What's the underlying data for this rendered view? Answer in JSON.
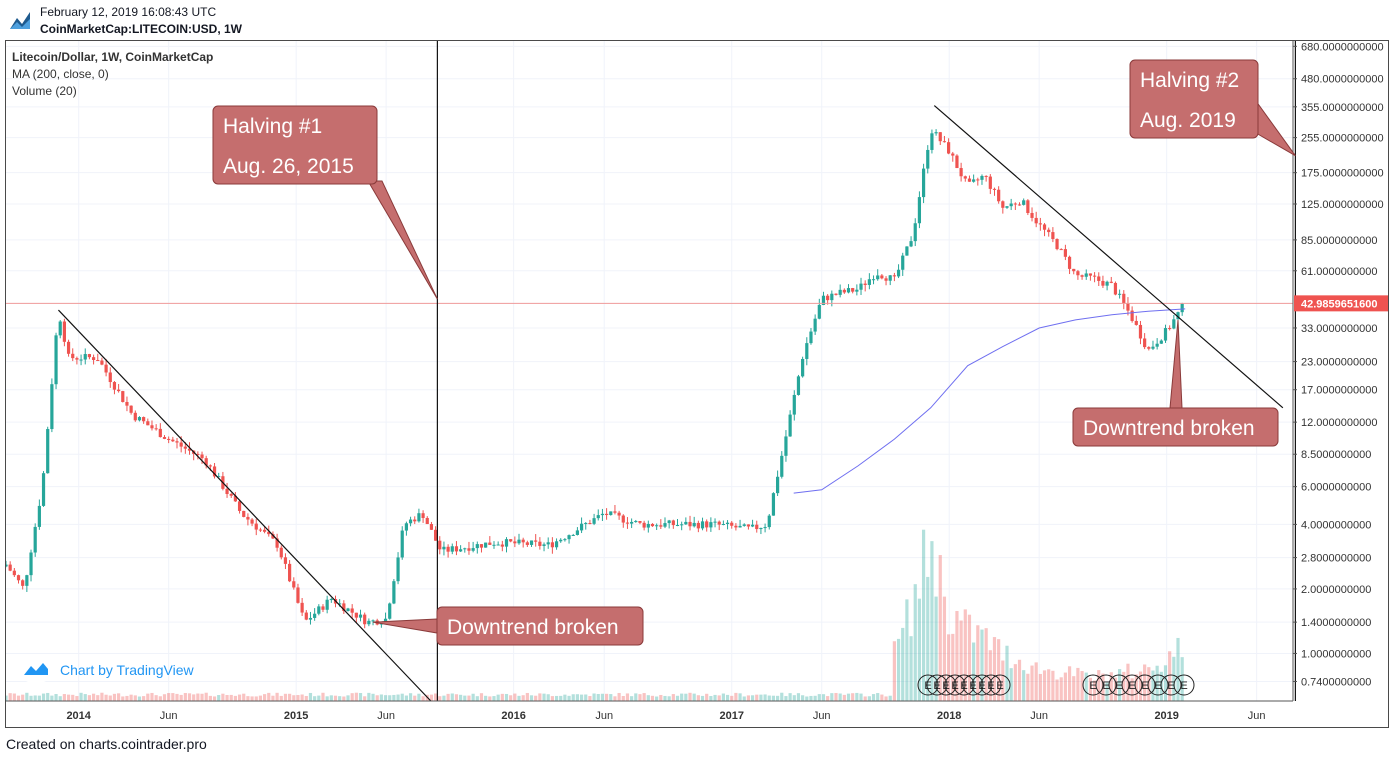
{
  "header": {
    "date": "February 12, 2019 16:08:43 UTC",
    "symbol": "CoinMarketCap:LITECOIN:USD, 1W"
  },
  "legend": {
    "title": "Litecoin/Dollar, 1W, CoinMarketCap",
    "ma": "MA (200, close, 0)",
    "volume": "Volume (20)"
  },
  "badge": {
    "label": "Chart by TradingView",
    "icon": "tradingview-logo-icon"
  },
  "footer": {
    "text": "Created on charts.cointrader.pro"
  },
  "colors": {
    "up": "#26a69a",
    "down": "#ef5350",
    "ma": "#6f6ff0",
    "callout": "#c56e6e",
    "price_line": "#ef9a9a"
  },
  "chart_data": {
    "type": "candlestick",
    "title": "Litecoin/Dollar, 1W, CoinMarketCap",
    "scale": "log",
    "ylim": [
      0.6,
      720
    ],
    "y_ticks": [
      "680.0000000000",
      "480.0000000000",
      "355.0000000000",
      "255.0000000000",
      "175.0000000000",
      "125.0000000000",
      "85.0000000000",
      "61.0000000000",
      "33.0000000000",
      "23.0000000000",
      "17.0000000000",
      "12.0000000000",
      "8.5000000000",
      "6.0000000000",
      "4.0000000000",
      "2.8000000000",
      "2.0000000000",
      "1.4000000000",
      "1.0000000000",
      "0.7400000000"
    ],
    "last_price": "42.9859651600",
    "x_range": [
      "2013-09",
      "2019-08"
    ],
    "x_ticks": [
      "2014",
      "Jun",
      "2015",
      "Jun",
      "2016",
      "Jun",
      "2017",
      "Jun",
      "2018",
      "Jun",
      "2019",
      "Jun"
    ],
    "x_tick_dates": [
      "2014-01",
      "2014-06",
      "2015-01",
      "2015-06",
      "2016-01",
      "2016-06",
      "2017-01",
      "2017-06",
      "2018-01",
      "2018-06",
      "2019-01",
      "2019-06"
    ],
    "price_path": [
      [
        "2013-09",
        2.6
      ],
      [
        "2013-10",
        2.0
      ],
      [
        "2013-11",
        6.0
      ],
      [
        "2013-11-28",
        40.0
      ],
      [
        "2013-12-15",
        24.0
      ],
      [
        "2014-02",
        24.0
      ],
      [
        "2014-04",
        13.0
      ],
      [
        "2014-06",
        10.0
      ],
      [
        "2014-08",
        8.0
      ],
      [
        "2014-10",
        4.5
      ],
      [
        "2014-12",
        3.2
      ],
      [
        "2015-01-15",
        1.4
      ],
      [
        "2015-03",
        1.8
      ],
      [
        "2015-05",
        1.4
      ],
      [
        "2015-06",
        1.45
      ],
      [
        "2015-07",
        4.0
      ],
      [
        "2015-08",
        4.5
      ],
      [
        "2015-09",
        3.0
      ],
      [
        "2015-12",
        3.3
      ],
      [
        "2016-03",
        3.2
      ],
      [
        "2016-06",
        4.5
      ],
      [
        "2016-08",
        4.0
      ],
      [
        "2016-12",
        4.0
      ],
      [
        "2017-02",
        3.8
      ],
      [
        "2017-03",
        4.0
      ],
      [
        "2017-04",
        10.0
      ],
      [
        "2017-05",
        25.0
      ],
      [
        "2017-06",
        45.0
      ],
      [
        "2017-07",
        48.0
      ],
      [
        "2017-08",
        50.0
      ],
      [
        "2017-09",
        60.0
      ],
      [
        "2017-10",
        55.0
      ],
      [
        "2017-11",
        90.0
      ],
      [
        "2017-12",
        280.0
      ],
      [
        "2018-01",
        220.0
      ],
      [
        "2018-02",
        150.0
      ],
      [
        "2018-03",
        170.0
      ],
      [
        "2018-04",
        120.0
      ],
      [
        "2018-05",
        130.0
      ],
      [
        "2018-06",
        100.0
      ],
      [
        "2018-07",
        80.0
      ],
      [
        "2018-08",
        58.0
      ],
      [
        "2018-09",
        56.0
      ],
      [
        "2018-10",
        52.0
      ],
      [
        "2018-11",
        38.0
      ],
      [
        "2018-12",
        26.0
      ],
      [
        "2019-01",
        32.0
      ],
      [
        "2019-02",
        43.0
      ]
    ],
    "ma_200": [
      [
        "2017-04-15",
        5.6
      ],
      [
        "2017-06",
        5.8
      ],
      [
        "2017-08",
        7.5
      ],
      [
        "2017-10",
        10.0
      ],
      [
        "2017-12",
        14.0
      ],
      [
        "2018-02",
        22.0
      ],
      [
        "2018-04",
        27.0
      ],
      [
        "2018-06",
        33.0
      ],
      [
        "2018-08",
        36.0
      ],
      [
        "2018-10",
        38.0
      ],
      [
        "2018-12",
        39.5
      ],
      [
        "2019-02",
        40.5
      ]
    ],
    "volume": [
      [
        "2017-10",
        0.3
      ],
      [
        "2017-11",
        0.6
      ],
      [
        "2017-12",
        1.0
      ],
      [
        "2018-01",
        0.55
      ],
      [
        "2018-02",
        0.45
      ],
      [
        "2018-03",
        0.4
      ],
      [
        "2018-04",
        0.3
      ],
      [
        "2018-06",
        0.2
      ],
      [
        "2018-09",
        0.15
      ],
      [
        "2018-12",
        0.2
      ],
      [
        "2019-02",
        0.35
      ]
    ],
    "trendlines": [
      {
        "from": [
          "2013-11-28",
          40.0
        ],
        "to": [
          "2015-08-15",
          0.6
        ]
      },
      {
        "from": [
          "2017-12-07",
          360.0
        ],
        "to": [
          "2019-07-15",
          14.0
        ]
      }
    ],
    "vertical_lines": [
      "2015-08-26",
      "2019-08-05"
    ],
    "event_markers": [
      "E",
      "E",
      "E",
      "E",
      "E",
      "E",
      "E",
      "E",
      "E",
      "E",
      "E",
      "E",
      "E",
      "E",
      "E",
      "E",
      "E"
    ],
    "annotations": [
      {
        "id": "halving1",
        "lines": [
          "Halving #1",
          "Aug. 26, 2015"
        ],
        "anchor": [
          "2015-08-26",
          45.0
        ]
      },
      {
        "id": "halving2",
        "lines": [
          "Halving #2",
          "Aug. 2019"
        ],
        "anchor": [
          "2019-08-05",
          210.0
        ]
      },
      {
        "id": "break1",
        "text": "Downtrend broken",
        "anchor": [
          "2015-05-10",
          1.4
        ]
      },
      {
        "id": "break2",
        "text": "Downtrend broken",
        "anchor": [
          "2019-01-20",
          36.0
        ]
      }
    ]
  }
}
